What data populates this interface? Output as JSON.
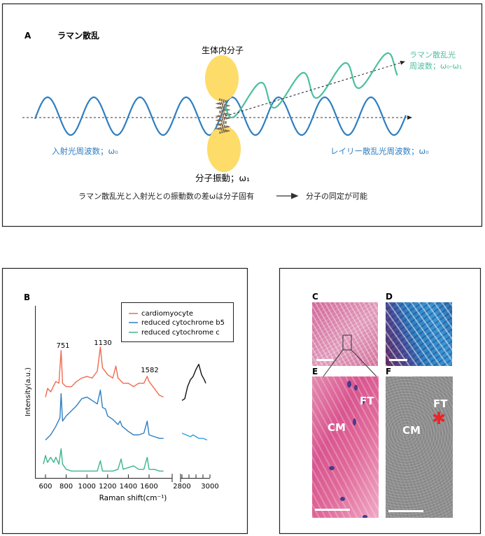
{
  "panel_a": {
    "label": "A",
    "title": "ラマン散乱",
    "molecule_label": "生体内分子",
    "raman_label_line1": "ラマン散乱光",
    "raman_label_line2": "周波数；ω₀-ω₁",
    "incident_label": "入射光周波数；ω₀",
    "rayleigh_label": "レイリー散乱光周波数；ω₀",
    "vibration_label": "分子振動；ω₁",
    "conclusion_left": "ラマン散乱光と入射光との振動数の差ωは分子固有",
    "conclusion_right": "分子の同定が可能",
    "colors": {
      "incident": "#2f7ec1",
      "raman": "#4dbf9f",
      "molecule": "#fddc6a"
    }
  },
  "panel_b": {
    "label": "B"
  },
  "chart_data": {
    "type": "line",
    "xlabel": "Raman shift(cm⁻¹)",
    "ylabel": "Intensity(a.u.)",
    "x_ranges": [
      [
        550,
        1750
      ],
      [
        2780,
        3000
      ]
    ],
    "x_ticks_left": [
      600,
      800,
      1000,
      1200,
      1400,
      1600
    ],
    "x_ticks_right": [
      2800,
      3000
    ],
    "tick_labels": [
      "600",
      "800",
      "1000",
      "1200",
      "1400",
      "1600",
      "2800",
      "3000"
    ],
    "ylim": [
      0,
      100
    ],
    "legend_position": "top-right",
    "legend": [
      {
        "name": "cardiomyocyte",
        "color": "#f06a4f"
      },
      {
        "name": "reduced cytochrome b5",
        "color": "#2f7ec1"
      },
      {
        "name": "reduced cytochrome c",
        "color": "#3db58f"
      }
    ],
    "annotations": [
      {
        "text": "751",
        "x": 751
      },
      {
        "text": "1130",
        "x": 1130
      },
      {
        "text": "1582",
        "x": 1582
      }
    ],
    "series": [
      {
        "name": "cardiomyocyte",
        "color": "#f06a4f",
        "x": [
          600,
          620,
          650,
          700,
          730,
          751,
          765,
          800,
          850,
          900,
          950,
          1000,
          1050,
          1100,
          1130,
          1150,
          1200,
          1250,
          1280,
          1300,
          1350,
          1400,
          1450,
          1500,
          1550,
          1582,
          1600,
          1650,
          1700,
          1740
        ],
        "y": [
          47,
          52,
          50,
          56,
          55,
          74,
          55,
          53,
          53,
          56,
          58,
          59,
          58,
          62,
          76,
          64,
          60,
          58,
          65,
          58,
          55,
          55,
          53,
          55,
          55,
          59,
          56,
          52,
          48,
          47
        ]
      },
      {
        "name": "reduced cytochrome b5",
        "color": "#2f7ec1",
        "x": [
          600,
          650,
          700,
          740,
          751,
          765,
          800,
          850,
          900,
          950,
          1000,
          1050,
          1100,
          1130,
          1150,
          1180,
          1200,
          1250,
          1300,
          1320,
          1340,
          1400,
          1450,
          1500,
          1550,
          1582,
          1600,
          1650,
          1700,
          1740
        ],
        "y": [
          22,
          25,
          30,
          35,
          49,
          33,
          36,
          39,
          42,
          46,
          47,
          45,
          43,
          51,
          41,
          40,
          36,
          34,
          31,
          33,
          30,
          27,
          25,
          25,
          26,
          33,
          25,
          24,
          23,
          23
        ]
      },
      {
        "name": "reduced cytochrome c",
        "color": "#3db58f",
        "x": [
          580,
          600,
          620,
          650,
          680,
          700,
          730,
          751,
          765,
          800,
          850,
          900,
          950,
          1000,
          1100,
          1130,
          1150,
          1250,
          1300,
          1330,
          1350,
          1400,
          1450,
          1500,
          1550,
          1582,
          1600,
          1650,
          1700,
          1740
        ],
        "y": [
          8,
          13,
          9,
          12,
          9,
          12,
          8,
          17,
          8,
          5,
          4,
          4,
          4,
          4,
          4,
          10,
          4,
          4,
          5,
          11,
          5,
          6,
          7,
          5,
          5,
          12,
          5,
          5,
          4,
          4
        ]
      },
      {
        "color": "#111111",
        "x": [
          2800,
          2820,
          2840,
          2860,
          2880,
          2900,
          2920,
          2940,
          2960,
          2970
        ],
        "y": [
          45,
          46,
          53,
          57,
          59,
          63,
          66,
          60,
          57,
          55
        ]
      },
      {
        "color": "#2aa0dc",
        "x": [
          2800,
          2830,
          2860,
          2880,
          2900,
          2920,
          2950,
          2980
        ],
        "y": [
          26,
          25,
          24,
          25,
          24,
          23,
          23,
          22
        ]
      }
    ]
  },
  "panel_cf": {
    "labels": {
      "c": "C",
      "d": "D",
      "e": "E",
      "f": "F"
    },
    "e_cm": "CM",
    "e_ft": "FT",
    "f_cm": "CM",
    "f_ft": "FT",
    "marker_color": "#e8262a"
  }
}
